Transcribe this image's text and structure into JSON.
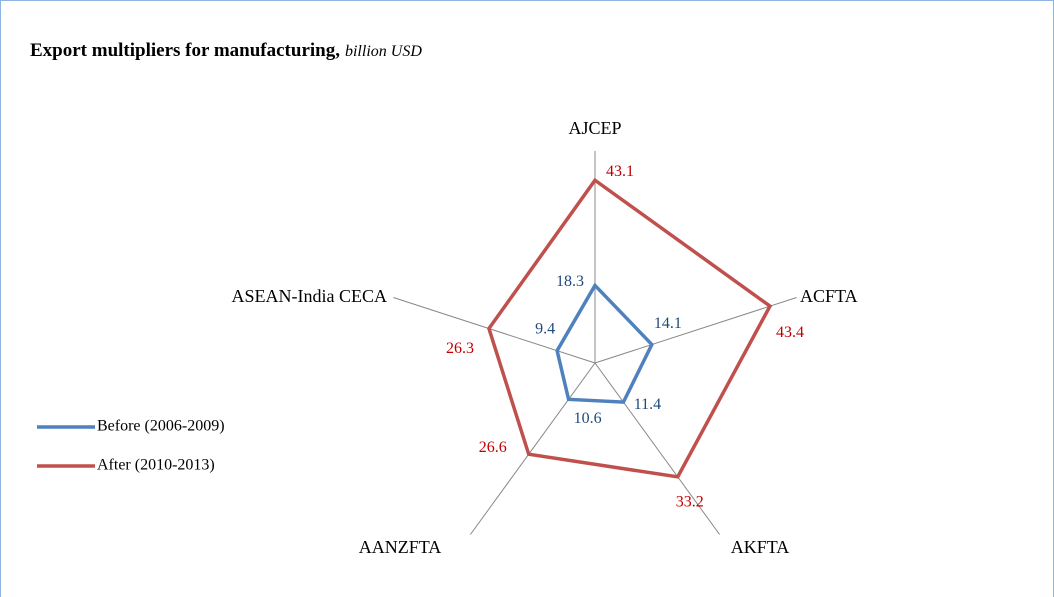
{
  "chart_data": {
    "type": "radar",
    "title": "Export multipliers for manufacturing,",
    "subtitle": "billion USD",
    "categories": [
      "AJCEP",
      "ACFTA",
      "AKFTA",
      "AANZFTA",
      "ASEAN-India CECA"
    ],
    "series": [
      {
        "name": "Before (2006-2009)",
        "color": "#4f81bd",
        "values": [
          18.3,
          14.1,
          11.4,
          10.6,
          9.4
        ]
      },
      {
        "name": "After (2010-2013)",
        "color": "#c0504d",
        "values": [
          43.1,
          43.4,
          33.2,
          26.6,
          26.3
        ]
      }
    ],
    "ylim": [
      0,
      50
    ],
    "legend": "left"
  }
}
